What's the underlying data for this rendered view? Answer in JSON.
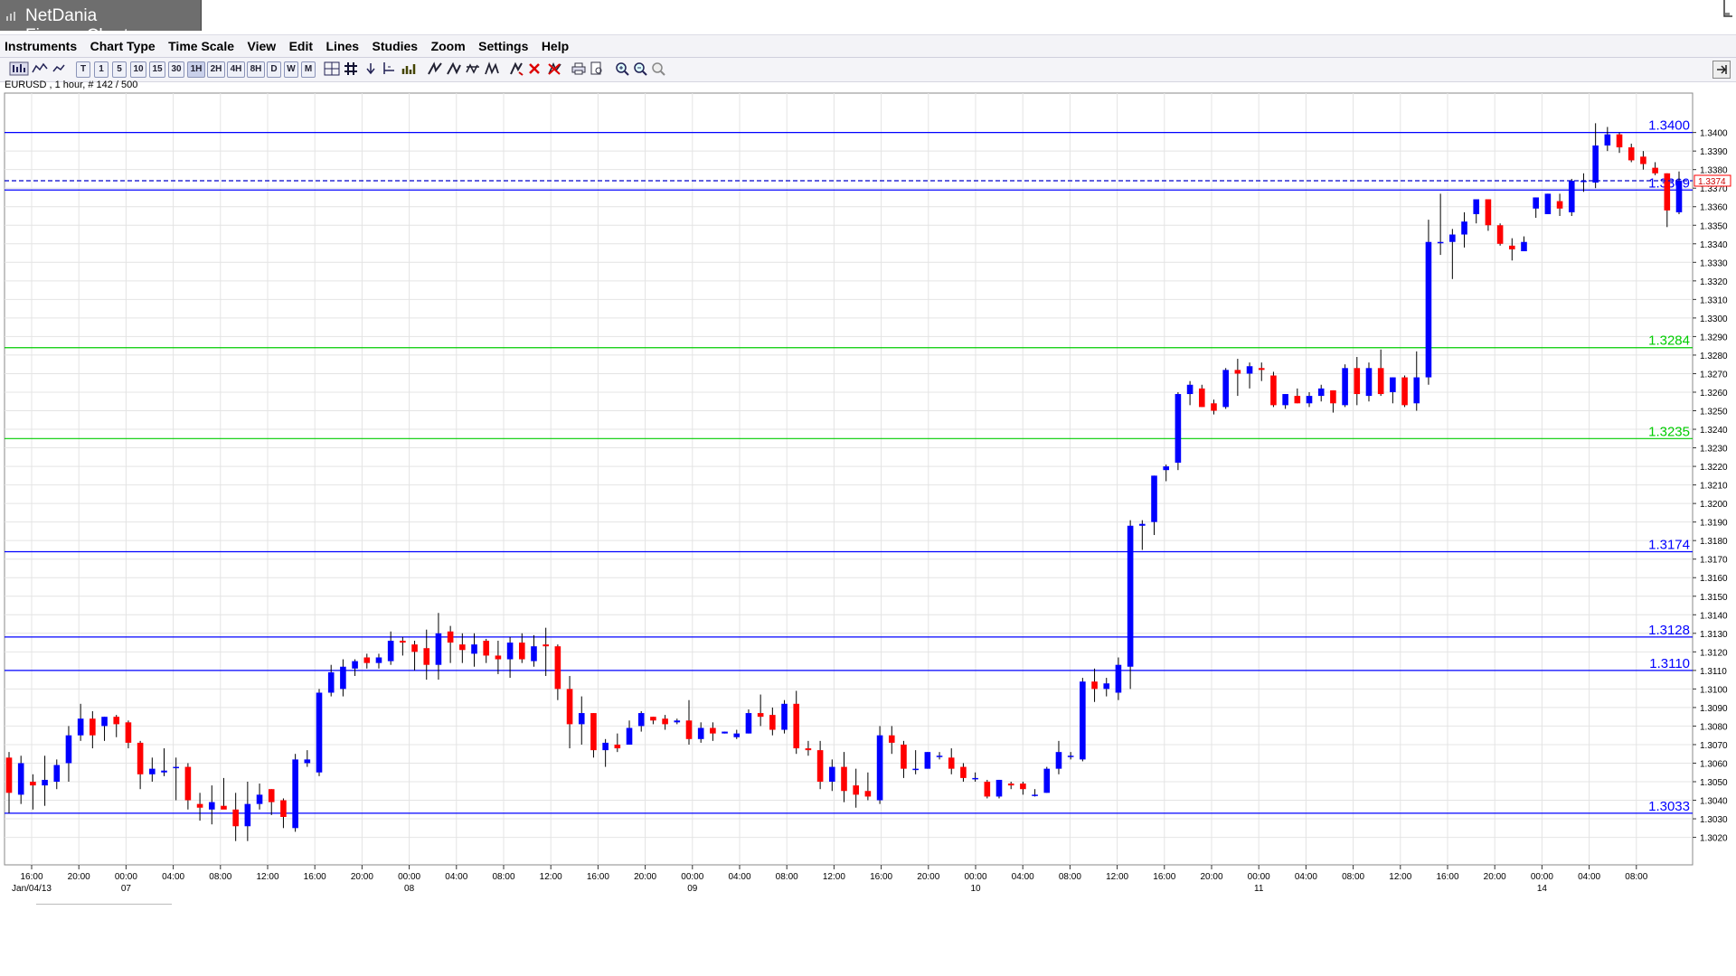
{
  "window": {
    "title": "NetDania FinanceChart"
  },
  "menu": [
    "Instruments",
    "Chart Type",
    "Time Scale",
    "View",
    "Edit",
    "Lines",
    "Studies",
    "Zoom",
    "Settings",
    "Help"
  ],
  "toolbar": {
    "timeframes": [
      "T",
      "1",
      "5",
      "10",
      "15",
      "30",
      "1H",
      "2H",
      "4H",
      "8H",
      "D",
      "W",
      "M"
    ],
    "selected_timeframe": "1H",
    "icons": [
      "chart-type-icon",
      "candle-icon",
      "line-icon",
      "crosshair-icon",
      "grid-icon",
      "arrow-down-icon",
      "cursor-icon",
      "volume-icon",
      "draw-line-icon",
      "fan-icon",
      "channel-icon",
      "fib-icon",
      "pen-icon",
      "delete-icon",
      "delete-all-icon",
      "print-icon",
      "preview-icon",
      "zoom-in-icon",
      "zoom-out-icon",
      "zoom-reset-icon"
    ]
  },
  "chart_header": "EURUSD , 1 hour, # 142 / 500",
  "colors": {
    "up": "#0000ff",
    "down": "#ff0000",
    "resistance": "#0000ff",
    "support_green": "#00cc00",
    "grid": "#e4e4e4"
  },
  "chart_data": {
    "type": "candlestick",
    "symbol": "EURUSD",
    "interval": "1 hour",
    "ylim": [
      1.3012,
      1.3412
    ],
    "y_ticks": [
      "1.3400",
      "1.3390",
      "1.3380",
      "1.3370",
      "1.3360",
      "1.3350",
      "1.3340",
      "1.3330",
      "1.3320",
      "1.3310",
      "1.3300",
      "1.3290",
      "1.3280",
      "1.3270",
      "1.3260",
      "1.3250",
      "1.3240",
      "1.3230",
      "1.3220",
      "1.3210",
      "1.3200",
      "1.3190",
      "1.3180",
      "1.3170",
      "1.3160",
      "1.3150",
      "1.3140",
      "1.3130",
      "1.3120",
      "1.3110",
      "1.3100",
      "1.3090",
      "1.3080",
      "1.3070",
      "1.3060",
      "1.3050",
      "1.3040",
      "1.3030",
      "1.3020"
    ],
    "x_tick_labels": [
      "16:00",
      "20:00",
      "00:00",
      "04:00",
      "08:00",
      "12:00",
      "16:00",
      "20:00",
      "00:00",
      "04:00",
      "08:00",
      "12:00",
      "16:00",
      "20:00",
      "00:00",
      "04:00",
      "08:00",
      "12:00",
      "16:00",
      "20:00",
      "00:00",
      "04:00",
      "08:00",
      "12:00",
      "16:00",
      "20:00",
      "00:00",
      "04:00",
      "08:00",
      "12:00",
      "16:00",
      "20:00",
      "00:00",
      "04:00",
      "08:00"
    ],
    "x_date_labels": [
      {
        "text": "Jan/04/13",
        "tick": 0
      },
      {
        "text": "07",
        "tick": 2
      },
      {
        "text": "08",
        "tick": 8
      },
      {
        "text": "09",
        "tick": 14
      },
      {
        "text": "10",
        "tick": 20
      },
      {
        "text": "11",
        "tick": 26
      },
      {
        "text": "14",
        "tick": 32
      }
    ],
    "h_lines": [
      {
        "value": 1.34,
        "label": "1.3400",
        "color": "#0000ff"
      },
      {
        "value": 1.3369,
        "label": "1.3369",
        "color": "#0000ff"
      },
      {
        "value": 1.3284,
        "label": "1.3284",
        "color": "#00cc00"
      },
      {
        "value": 1.3235,
        "label": "1.3235",
        "color": "#00cc00"
      },
      {
        "value": 1.3174,
        "label": "1.3174",
        "color": "#0000ff"
      },
      {
        "value": 1.3128,
        "label": "1.3128",
        "color": "#0000ff"
      },
      {
        "value": 1.311,
        "label": "1.3110",
        "color": "#0000ff"
      },
      {
        "value": 1.3033,
        "label": "1.3033",
        "color": "#0000ff"
      }
    ],
    "last_price": {
      "value": 1.3374,
      "label": "1.3374"
    },
    "candles": [
      [
        1.3063,
        1.3066,
        1.3033,
        1.3044
      ],
      [
        1.3043,
        1.3064,
        1.3038,
        1.306
      ],
      [
        1.305,
        1.3054,
        1.3035,
        1.3048
      ],
      [
        1.3048,
        1.3064,
        1.3037,
        1.3051
      ],
      [
        1.305,
        1.3062,
        1.3046,
        1.3059
      ],
      [
        1.306,
        1.308,
        1.305,
        1.3075
      ],
      [
        1.3075,
        1.3092,
        1.3072,
        1.3084
      ],
      [
        1.3084,
        1.3088,
        1.3068,
        1.3075
      ],
      [
        1.308,
        1.3085,
        1.3072,
        1.3085
      ],
      [
        1.3085,
        1.3086,
        1.3074,
        1.3081
      ],
      [
        1.3082,
        1.3083,
        1.3068,
        1.3071
      ],
      [
        1.3071,
        1.3072,
        1.3046,
        1.3054
      ],
      [
        1.3054,
        1.3063,
        1.305,
        1.3057
      ],
      [
        1.3055,
        1.3068,
        1.3053,
        1.3056
      ],
      [
        1.3058,
        1.3063,
        1.304,
        1.3058
      ],
      [
        1.3058,
        1.306,
        1.3035,
        1.304
      ],
      [
        1.3038,
        1.3044,
        1.3029,
        1.3036
      ],
      [
        1.3035,
        1.3048,
        1.3027,
        1.3039
      ],
      [
        1.3037,
        1.3052,
        1.3036,
        1.3035
      ],
      [
        1.3035,
        1.3044,
        1.3018,
        1.3026
      ],
      [
        1.3026,
        1.305,
        1.3018,
        1.3038
      ],
      [
        1.3038,
        1.3049,
        1.3035,
        1.3043
      ],
      [
        1.3046,
        1.3046,
        1.3032,
        1.3039
      ],
      [
        1.304,
        1.3041,
        1.3025,
        1.3031
      ],
      [
        1.3025,
        1.3065,
        1.3023,
        1.3062
      ],
      [
        1.306,
        1.3067,
        1.3058,
        1.3062
      ],
      [
        1.3055,
        1.31,
        1.3053,
        1.3098
      ],
      [
        1.3098,
        1.3113,
        1.3096,
        1.3109
      ],
      [
        1.31,
        1.3116,
        1.3096,
        1.3112
      ],
      [
        1.3111,
        1.3116,
        1.3107,
        1.3115
      ],
      [
        1.3117,
        1.3119,
        1.3111,
        1.3114
      ],
      [
        1.3114,
        1.3119,
        1.3111,
        1.3117
      ],
      [
        1.3115,
        1.3131,
        1.3113,
        1.3126
      ],
      [
        1.3126,
        1.3128,
        1.3118,
        1.3125
      ],
      [
        1.3124,
        1.3126,
        1.311,
        1.312
      ],
      [
        1.3122,
        1.3132,
        1.3105,
        1.3113
      ],
      [
        1.3113,
        1.3141,
        1.3105,
        1.313
      ],
      [
        1.3131,
        1.3134,
        1.3114,
        1.3125
      ],
      [
        1.3124,
        1.313,
        1.3114,
        1.3121
      ],
      [
        1.3119,
        1.313,
        1.3112,
        1.3124
      ],
      [
        1.3126,
        1.3127,
        1.3114,
        1.3118
      ],
      [
        1.3118,
        1.3126,
        1.3108,
        1.3116
      ],
      [
        1.3116,
        1.3128,
        1.3106,
        1.3125
      ],
      [
        1.3125,
        1.313,
        1.3114,
        1.3116
      ],
      [
        1.3115,
        1.3129,
        1.3112,
        1.3123
      ],
      [
        1.3124,
        1.3133,
        1.3107,
        1.3123
      ],
      [
        1.3123,
        1.3124,
        1.3094,
        1.31
      ],
      [
        1.31,
        1.3107,
        1.3068,
        1.3081
      ],
      [
        1.3081,
        1.3096,
        1.307,
        1.3087
      ],
      [
        1.3087,
        1.3087,
        1.3063,
        1.3067
      ],
      [
        1.3067,
        1.3073,
        1.3058,
        1.3071
      ],
      [
        1.307,
        1.3076,
        1.3066,
        1.3068
      ],
      [
        1.307,
        1.3083,
        1.307,
        1.3079
      ],
      [
        1.308,
        1.3088,
        1.3077,
        1.3087
      ],
      [
        1.3085,
        1.3085,
        1.3081,
        1.3083
      ],
      [
        1.3084,
        1.3086,
        1.3078,
        1.3081
      ],
      [
        1.3082,
        1.3084,
        1.3081,
        1.3083
      ],
      [
        1.3083,
        1.3094,
        1.307,
        1.3073
      ],
      [
        1.3073,
        1.3082,
        1.3071,
        1.3079
      ],
      [
        1.3079,
        1.3082,
        1.3072,
        1.3076
      ],
      [
        1.3076,
        1.3077,
        1.3076,
        1.3077
      ],
      [
        1.3074,
        1.3078,
        1.3073,
        1.3076
      ],
      [
        1.3076,
        1.3089,
        1.3076,
        1.3087
      ],
      [
        1.3087,
        1.3097,
        1.308,
        1.3085
      ],
      [
        1.3086,
        1.309,
        1.3075,
        1.3078
      ],
      [
        1.3078,
        1.3094,
        1.3076,
        1.3092
      ],
      [
        1.3092,
        1.3099,
        1.3065,
        1.3068
      ],
      [
        1.3068,
        1.3072,
        1.3064,
        1.3067
      ],
      [
        1.3067,
        1.3072,
        1.3046,
        1.305
      ],
      [
        1.305,
        1.3062,
        1.3045,
        1.3058
      ],
      [
        1.3058,
        1.3066,
        1.3039,
        1.3045
      ],
      [
        1.3048,
        1.3057,
        1.3036,
        1.3043
      ],
      [
        1.3045,
        1.3055,
        1.304,
        1.3042
      ],
      [
        1.304,
        1.308,
        1.3038,
        1.3075
      ],
      [
        1.3075,
        1.308,
        1.3065,
        1.3071
      ],
      [
        1.307,
        1.3072,
        1.3052,
        1.3057
      ],
      [
        1.3057,
        1.3067,
        1.3054,
        1.3057
      ],
      [
        1.3057,
        1.3066,
        1.3057,
        1.3066
      ],
      [
        1.3064,
        1.3066,
        1.3062,
        1.3064
      ],
      [
        1.3063,
        1.3068,
        1.3054,
        1.3057
      ],
      [
        1.3058,
        1.306,
        1.305,
        1.3052
      ],
      [
        1.3052,
        1.3055,
        1.305,
        1.3052
      ],
      [
        1.305,
        1.3051,
        1.3041,
        1.3042
      ],
      [
        1.3042,
        1.3051,
        1.3041,
        1.3051
      ],
      [
        1.3049,
        1.305,
        1.3046,
        1.3048
      ],
      [
        1.3049,
        1.305,
        1.3043,
        1.3046
      ],
      [
        1.3043,
        1.3046,
        1.3042,
        1.3043
      ],
      [
        1.3044,
        1.3058,
        1.3044,
        1.3057
      ],
      [
        1.3057,
        1.3072,
        1.3054,
        1.3066
      ],
      [
        1.3064,
        1.3066,
        1.3062,
        1.3064
      ],
      [
        1.3062,
        1.3106,
        1.3061,
        1.3104
      ],
      [
        1.3104,
        1.3111,
        1.3093,
        1.31
      ],
      [
        1.31,
        1.3106,
        1.3096,
        1.3103
      ],
      [
        1.3098,
        1.3117,
        1.3094,
        1.3113
      ],
      [
        1.3112,
        1.3191,
        1.31,
        1.3188
      ],
      [
        1.3188,
        1.3191,
        1.3175,
        1.3189
      ],
      [
        1.319,
        1.3215,
        1.3183,
        1.3215
      ],
      [
        1.3218,
        1.3221,
        1.3212,
        1.322
      ],
      [
        1.3222,
        1.326,
        1.3218,
        1.3259
      ],
      [
        1.3259,
        1.3266,
        1.3253,
        1.3264
      ],
      [
        1.3262,
        1.3264,
        1.3252,
        1.3252
      ],
      [
        1.3254,
        1.3256,
        1.3248,
        1.325
      ],
      [
        1.3252,
        1.3273,
        1.3251,
        1.3272
      ],
      [
        1.3272,
        1.3278,
        1.3258,
        1.327
      ],
      [
        1.327,
        1.3276,
        1.3262,
        1.3274
      ],
      [
        1.3273,
        1.3276,
        1.3266,
        1.3272
      ],
      [
        1.3269,
        1.3271,
        1.3252,
        1.3253
      ],
      [
        1.3253,
        1.3259,
        1.3251,
        1.3259
      ],
      [
        1.3258,
        1.3262,
        1.3254,
        1.3254
      ],
      [
        1.3254,
        1.326,
        1.3252,
        1.3258
      ],
      [
        1.3258,
        1.3264,
        1.3255,
        1.3262
      ],
      [
        1.3261,
        1.3261,
        1.3249,
        1.3254
      ],
      [
        1.3253,
        1.3275,
        1.3252,
        1.3273
      ],
      [
        1.3273,
        1.3279,
        1.3253,
        1.3259
      ],
      [
        1.3258,
        1.3276,
        1.3255,
        1.3273
      ],
      [
        1.3273,
        1.3283,
        1.3258,
        1.3259
      ],
      [
        1.326,
        1.3268,
        1.3254,
        1.3268
      ],
      [
        1.3268,
        1.3269,
        1.3252,
        1.3253
      ],
      [
        1.3254,
        1.3282,
        1.325,
        1.3268
      ],
      [
        1.3268,
        1.3353,
        1.3264,
        1.3341
      ],
      [
        1.3341,
        1.3367,
        1.3334,
        1.3341
      ],
      [
        1.3341,
        1.3348,
        1.3321,
        1.3345
      ],
      [
        1.3345,
        1.3357,
        1.3338,
        1.3352
      ],
      [
        1.3356,
        1.3364,
        1.3351,
        1.3364
      ],
      [
        1.3364,
        1.3364,
        1.3347,
        1.335
      ],
      [
        1.335,
        1.3351,
        1.3339,
        1.334
      ],
      [
        1.3339,
        1.3343,
        1.3331,
        1.3337
      ],
      [
        1.3336,
        1.3344,
        1.3336,
        1.3341
      ],
      [
        1.3359,
        1.3365,
        1.3354,
        1.3365
      ],
      [
        1.3356,
        1.3367,
        1.3356,
        1.3367
      ],
      [
        1.3363,
        1.3367,
        1.3355,
        1.3359
      ],
      [
        1.3357,
        1.3375,
        1.3355,
        1.3374
      ],
      [
        1.3374,
        1.3378,
        1.3368,
        1.3374
      ],
      [
        1.3373,
        1.3405,
        1.337,
        1.3393
      ],
      [
        1.3393,
        1.3403,
        1.339,
        1.3399
      ],
      [
        1.3399,
        1.34,
        1.3389,
        1.3392
      ],
      [
        1.3392,
        1.3394,
        1.3384,
        1.3385
      ],
      [
        1.3387,
        1.339,
        1.338,
        1.3383
      ],
      [
        1.3381,
        1.3384,
        1.3377,
        1.3378
      ],
      [
        1.3378,
        1.3378,
        1.3349,
        1.3358
      ],
      [
        1.3357,
        1.3379,
        1.3356,
        1.3374
      ]
    ]
  }
}
